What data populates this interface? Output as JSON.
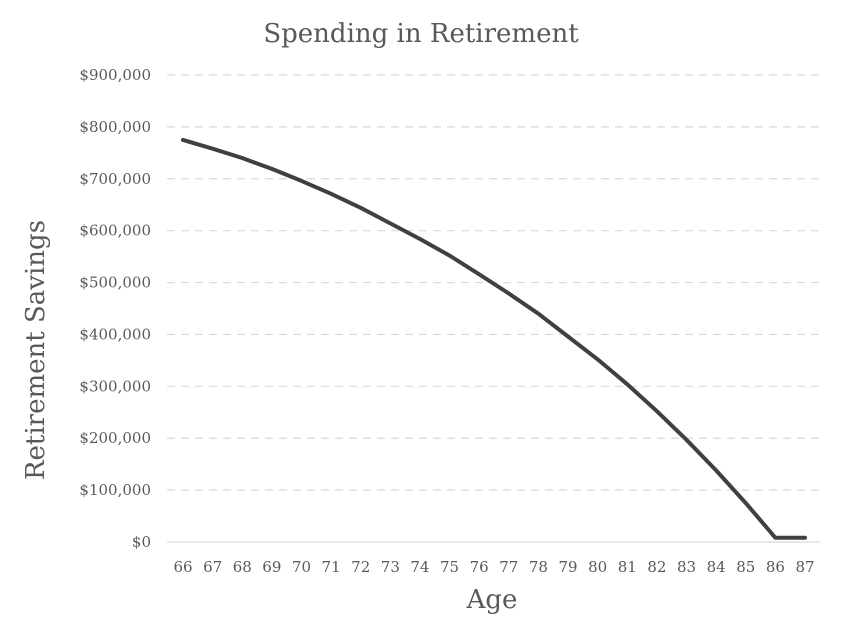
{
  "chart_data": {
    "type": "line",
    "title": "Spending in Retirement",
    "xlabel": "Age",
    "ylabel": "Retirement Savings",
    "x": [
      66,
      67,
      68,
      69,
      70,
      71,
      72,
      73,
      74,
      75,
      76,
      77,
      78,
      79,
      80,
      81,
      82,
      83,
      84,
      85,
      86,
      87
    ],
    "series": [
      {
        "values": [
          775000,
          758000,
          740000,
          719000,
          696000,
          671000,
          644000,
          614000,
          584000,
          552000,
          516000,
          479000,
          440000,
          396000,
          352000,
          304000,
          252000,
          197000,
          138000,
          75000,
          8000,
          8000
        ],
        "color": "#404040"
      }
    ],
    "ylim": [
      0,
      900000
    ],
    "yticks": [
      0,
      100000,
      200000,
      300000,
      400000,
      500000,
      600000,
      700000,
      800000,
      900000
    ],
    "ytick_labels": [
      "$0",
      "$100,000",
      "$200,000",
      "$300,000",
      "$400,000",
      "$500,000",
      "$600,000",
      "$700,000",
      "$800,000",
      "$900,000"
    ],
    "xtick_labels": [
      "66",
      "67",
      "68",
      "69",
      "70",
      "71",
      "72",
      "73",
      "74",
      "75",
      "76",
      "77",
      "78",
      "79",
      "80",
      "81",
      "82",
      "83",
      "84",
      "85",
      "86",
      "87"
    ],
    "grid": true,
    "legend": "none"
  }
}
